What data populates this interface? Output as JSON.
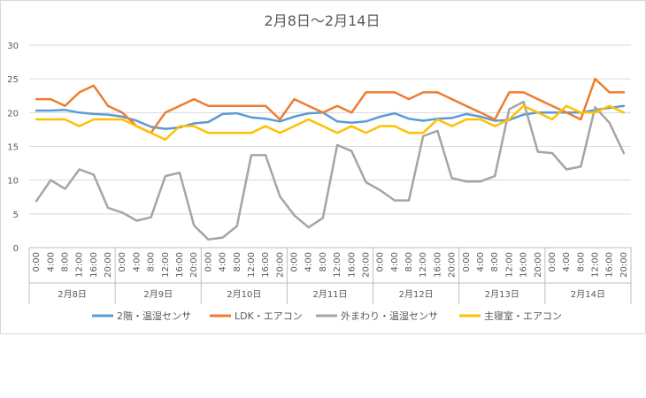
{
  "chart_data": {
    "type": "line",
    "title": "2月8日～2月14日",
    "xlabel": "",
    "ylabel": "",
    "ylim": [
      0,
      30
    ],
    "yticks": [
      0,
      5,
      10,
      15,
      20,
      25,
      30
    ],
    "grid": true,
    "legend_position": "bottom",
    "time_labels": [
      "0:00",
      "4:00",
      "8:00",
      "12:00",
      "16:00",
      "20:00"
    ],
    "days": [
      "2月8日",
      "2月9日",
      "2月10日",
      "2月11日",
      "2月12日",
      "2月13日",
      "2月14日"
    ],
    "series": [
      {
        "name": "2階・温湿センサ",
        "color": "#5b9bd5",
        "values": [
          20.3,
          20.3,
          20.4,
          20.0,
          19.8,
          19.7,
          19.4,
          18.8,
          17.9,
          17.6,
          17.8,
          18.4,
          18.6,
          19.8,
          19.9,
          19.3,
          19.1,
          18.7,
          19.4,
          19.9,
          20.0,
          18.7,
          18.5,
          18.7,
          19.4,
          19.9,
          19.1,
          18.8,
          19.1,
          19.2,
          19.8,
          19.4,
          18.8,
          18.9,
          19.7,
          20.0,
          20.0,
          20.0,
          20.0,
          20.4,
          20.7,
          21.0
        ]
      },
      {
        "name": "LDK・エアコン",
        "color": "#ed7d31",
        "values": [
          22,
          22,
          21,
          23,
          24,
          21,
          20,
          18,
          17,
          20,
          21,
          22,
          21,
          21,
          21,
          21,
          21,
          19,
          22,
          21,
          20,
          21,
          20,
          23,
          23,
          23,
          22,
          23,
          23,
          22,
          21,
          20,
          19,
          23,
          23,
          22,
          21,
          20,
          19,
          25,
          23,
          23
        ]
      },
      {
        "name": "外まわり・温湿センサ",
        "color": "#a5a5a5",
        "values": [
          6.9,
          10.0,
          8.7,
          11.6,
          10.8,
          5.9,
          5.2,
          4.0,
          4.5,
          10.6,
          11.1,
          3.3,
          1.2,
          1.5,
          3.2,
          13.7,
          13.7,
          7.6,
          4.8,
          3.0,
          4.4,
          15.2,
          14.3,
          9.7,
          8.5,
          7.0,
          7.0,
          16.5,
          17.3,
          10.3,
          9.8,
          9.8,
          10.6,
          20.5,
          21.6,
          14.2,
          14.0,
          11.6,
          12.0,
          20.8,
          18.5,
          14.0
        ]
      },
      {
        "name": "主寝室・エアコン",
        "color": "#ffc000",
        "values": [
          19,
          19,
          19,
          18,
          19,
          19,
          19,
          18,
          17,
          16,
          18,
          18,
          17,
          17,
          17,
          17,
          18,
          17,
          18,
          19,
          18,
          17,
          18,
          17,
          18,
          18,
          17,
          17,
          19,
          18,
          19,
          19,
          18,
          19,
          21,
          20,
          19,
          21,
          20,
          20,
          21,
          20
        ]
      }
    ]
  }
}
